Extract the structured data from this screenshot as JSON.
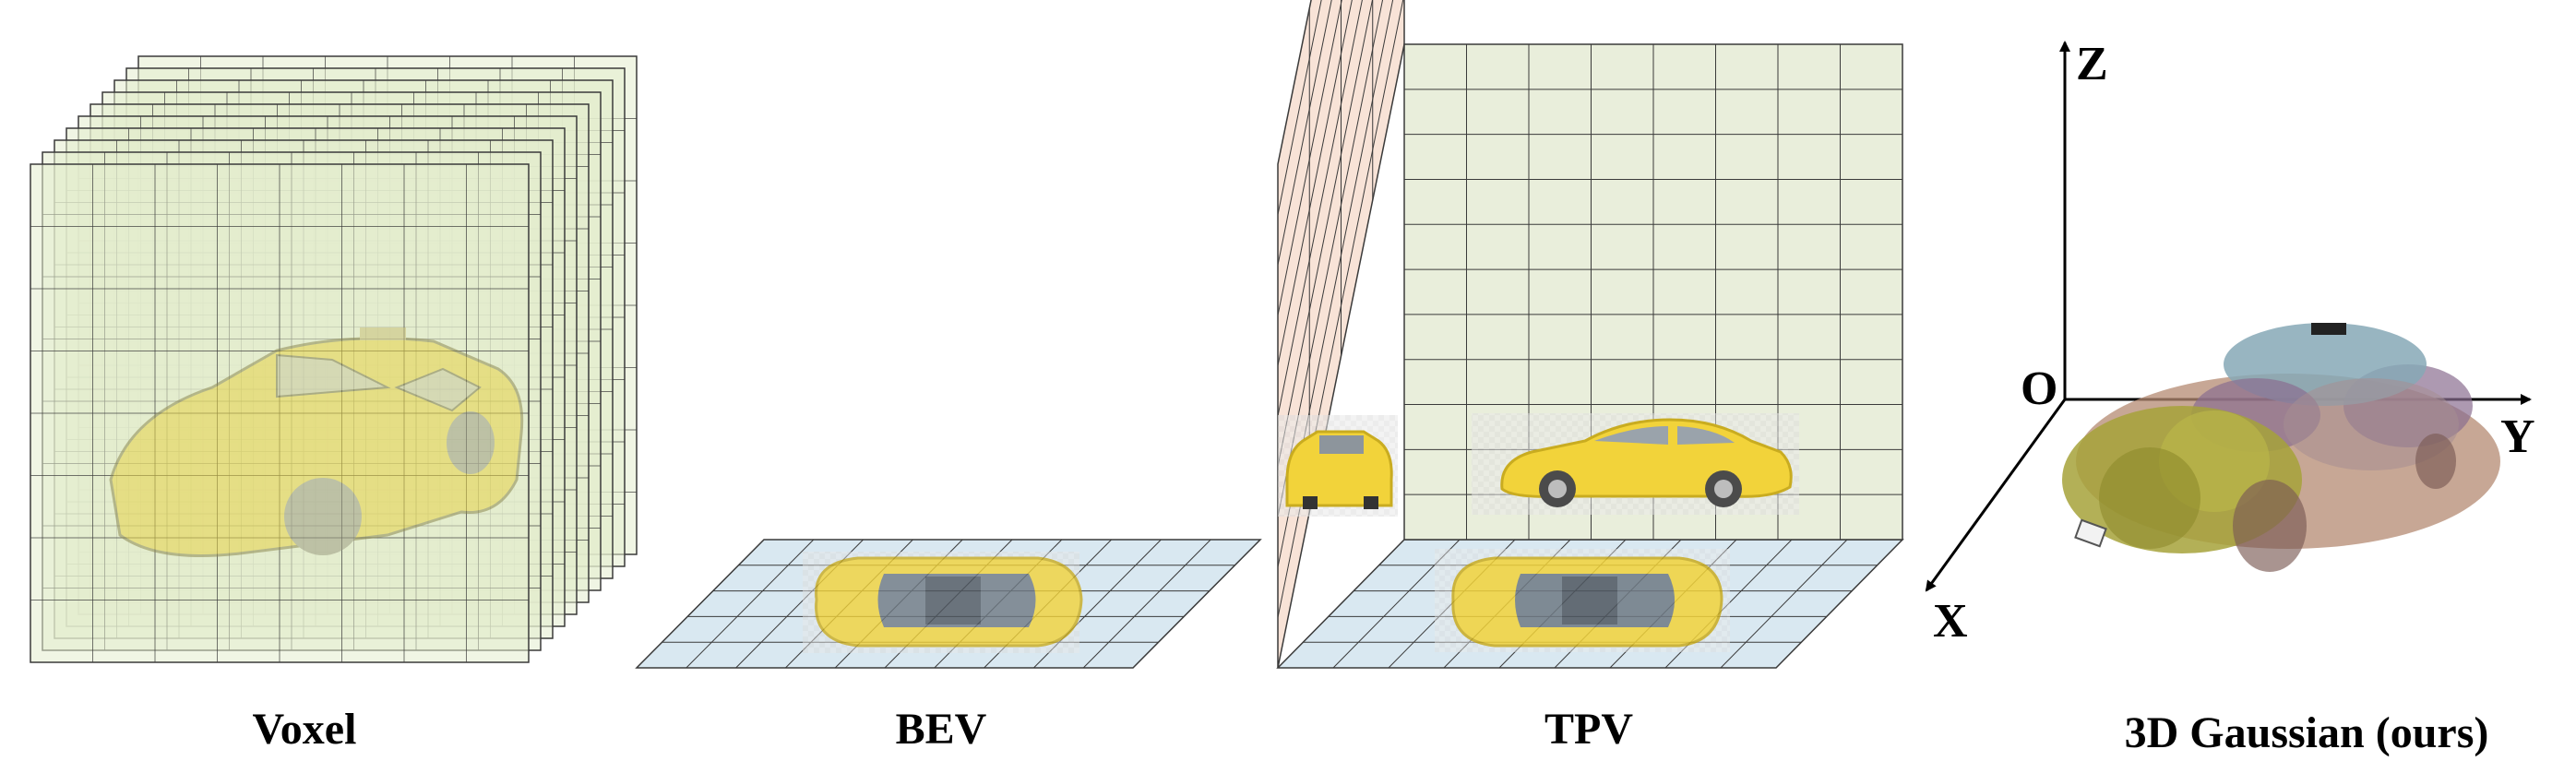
{
  "panels": {
    "voxel": {
      "caption": "Voxel"
    },
    "bev": {
      "caption": "BEV"
    },
    "tpv": {
      "caption": "TPV"
    },
    "gaussian": {
      "caption": "3D Gaussian (ours)"
    }
  },
  "axes": {
    "z": "Z",
    "y": "Y",
    "x": "X",
    "origin": "O"
  },
  "colors": {
    "voxel_fill": "#e4eccd",
    "voxel_stroke": "#3a3a3a",
    "bev_fill": "#d9e8f1",
    "tpv_front_fill": "#e9eedb",
    "tpv_side_fill": "#f8e3d7",
    "car_yellow": "#f2d33a",
    "gaussian_olive": "#a6a23a",
    "gaussian_blue": "#86a8b6",
    "gaussian_purple": "#8a6d90",
    "gaussian_brown": "#b48a72"
  },
  "icons": [
    "car-top-view-icon",
    "car-side-view-icon",
    "car-front-view-icon",
    "gaussian-car-icon"
  ]
}
